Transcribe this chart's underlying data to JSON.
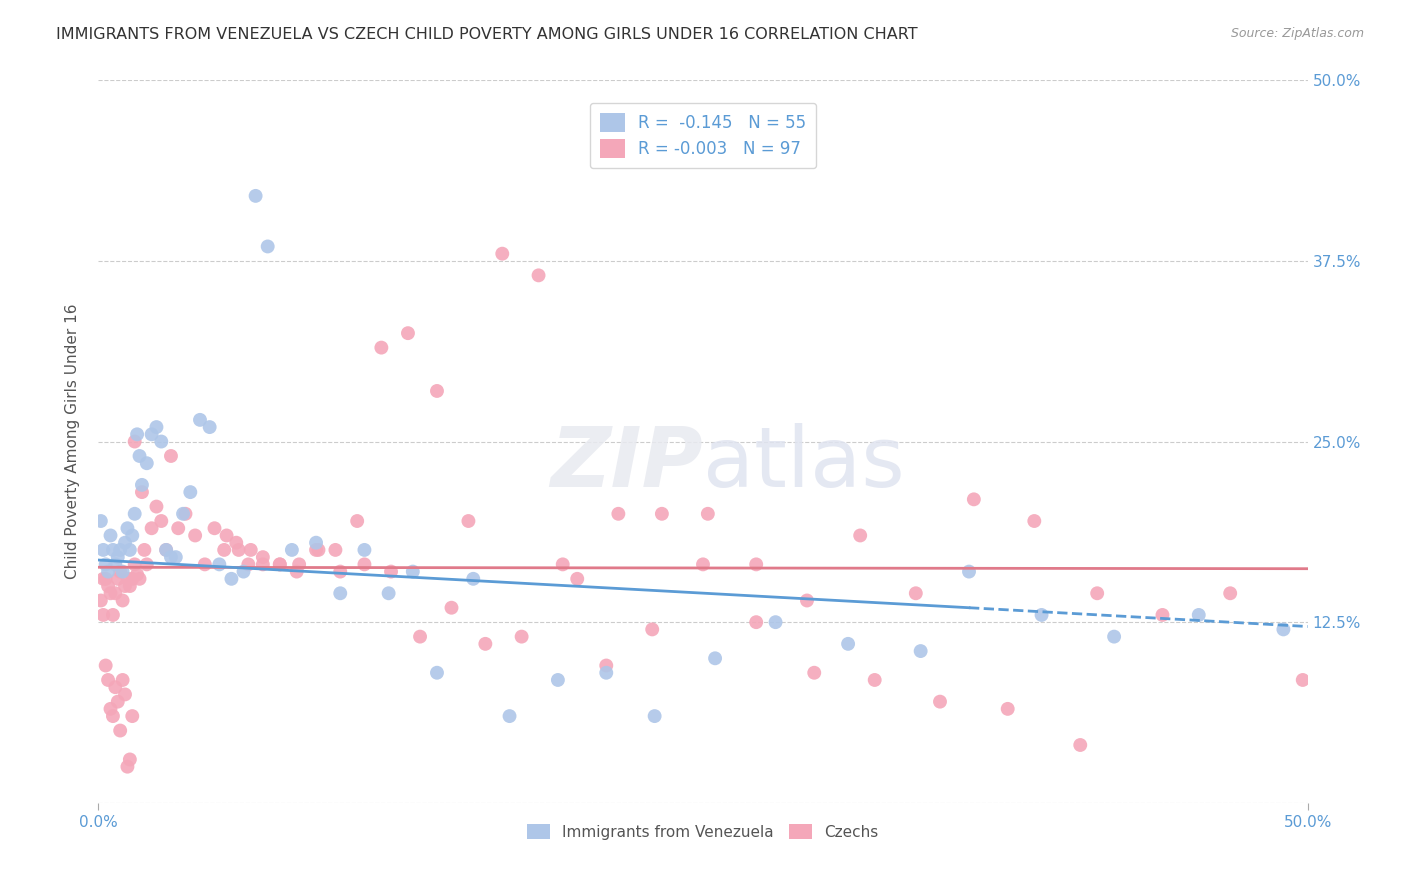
{
  "title": "IMMIGRANTS FROM VENEZUELA VS CZECH CHILD POVERTY AMONG GIRLS UNDER 16 CORRELATION CHART",
  "source": "Source: ZipAtlas.com",
  "ylabel": "Child Poverty Among Girls Under 16",
  "y_ticks": [
    0.0,
    0.125,
    0.25,
    0.375,
    0.5
  ],
  "y_tick_labels": [
    "",
    "12.5%",
    "25.0%",
    "37.5%",
    "50.0%"
  ],
  "x_range": [
    0.0,
    0.5
  ],
  "y_range": [
    0.0,
    0.5
  ],
  "legend_r1": "R =  -0.145",
  "legend_n1": "N = 55",
  "legend_r2": "R = -0.003",
  "legend_n2": "N = 97",
  "color_venezuela": "#aec6e8",
  "color_czech": "#f4a7b9",
  "color_line_venezuela": "#5b9bd5",
  "color_line_czech": "#e07a8a",
  "background": "#ffffff",
  "ven_line_x0": 0.0,
  "ven_line_y0": 0.168,
  "ven_line_x1": 0.36,
  "ven_line_y1": 0.135,
  "ven_line_dash_x0": 0.36,
  "ven_line_dash_y0": 0.135,
  "ven_line_dash_x1": 0.5,
  "ven_line_dash_y1": 0.122,
  "cze_line_x0": 0.0,
  "cze_line_y0": 0.163,
  "cze_line_x1": 0.5,
  "cze_line_y1": 0.162,
  "venezuela_x": [
    0.001,
    0.002,
    0.003,
    0.004,
    0.005,
    0.006,
    0.007,
    0.008,
    0.009,
    0.01,
    0.011,
    0.012,
    0.013,
    0.014,
    0.015,
    0.016,
    0.017,
    0.018,
    0.02,
    0.022,
    0.024,
    0.026,
    0.028,
    0.03,
    0.032,
    0.035,
    0.038,
    0.042,
    0.046,
    0.05,
    0.055,
    0.06,
    0.065,
    0.07,
    0.08,
    0.09,
    0.1,
    0.11,
    0.12,
    0.13,
    0.14,
    0.155,
    0.17,
    0.19,
    0.21,
    0.23,
    0.255,
    0.28,
    0.31,
    0.34,
    0.36,
    0.39,
    0.42,
    0.455,
    0.49
  ],
  "venezuela_y": [
    0.195,
    0.175,
    0.165,
    0.16,
    0.185,
    0.175,
    0.165,
    0.17,
    0.175,
    0.16,
    0.18,
    0.19,
    0.175,
    0.185,
    0.2,
    0.255,
    0.24,
    0.22,
    0.235,
    0.255,
    0.26,
    0.25,
    0.175,
    0.17,
    0.17,
    0.2,
    0.215,
    0.265,
    0.26,
    0.165,
    0.155,
    0.16,
    0.42,
    0.385,
    0.175,
    0.18,
    0.145,
    0.175,
    0.145,
    0.16,
    0.09,
    0.155,
    0.06,
    0.085,
    0.09,
    0.06,
    0.1,
    0.125,
    0.11,
    0.105,
    0.16,
    0.13,
    0.115,
    0.13,
    0.12
  ],
  "czech_x": [
    0.001,
    0.002,
    0.003,
    0.004,
    0.005,
    0.006,
    0.007,
    0.008,
    0.009,
    0.01,
    0.011,
    0.012,
    0.013,
    0.014,
    0.015,
    0.016,
    0.017,
    0.018,
    0.019,
    0.02,
    0.022,
    0.024,
    0.026,
    0.028,
    0.03,
    0.033,
    0.036,
    0.04,
    0.044,
    0.048,
    0.053,
    0.058,
    0.063,
    0.068,
    0.075,
    0.082,
    0.09,
    0.098,
    0.107,
    0.117,
    0.128,
    0.14,
    0.153,
    0.167,
    0.182,
    0.198,
    0.215,
    0.233,
    0.252,
    0.272,
    0.293,
    0.315,
    0.338,
    0.362,
    0.387,
    0.413,
    0.44,
    0.468,
    0.498,
    0.052,
    0.057,
    0.062,
    0.068,
    0.075,
    0.083,
    0.091,
    0.1,
    0.11,
    0.121,
    0.133,
    0.146,
    0.16,
    0.175,
    0.192,
    0.21,
    0.229,
    0.25,
    0.272,
    0.296,
    0.321,
    0.348,
    0.376,
    0.406,
    0.002,
    0.003,
    0.004,
    0.005,
    0.006,
    0.007,
    0.008,
    0.009,
    0.01,
    0.011,
    0.012,
    0.013,
    0.014,
    0.015
  ],
  "czech_y": [
    0.14,
    0.13,
    0.155,
    0.15,
    0.145,
    0.13,
    0.145,
    0.155,
    0.16,
    0.14,
    0.15,
    0.155,
    0.15,
    0.155,
    0.165,
    0.158,
    0.155,
    0.215,
    0.175,
    0.165,
    0.19,
    0.205,
    0.195,
    0.175,
    0.24,
    0.19,
    0.2,
    0.185,
    0.165,
    0.19,
    0.185,
    0.175,
    0.175,
    0.17,
    0.165,
    0.16,
    0.175,
    0.175,
    0.195,
    0.315,
    0.325,
    0.285,
    0.195,
    0.38,
    0.365,
    0.155,
    0.2,
    0.2,
    0.2,
    0.165,
    0.14,
    0.185,
    0.145,
    0.21,
    0.195,
    0.145,
    0.13,
    0.145,
    0.085,
    0.175,
    0.18,
    0.165,
    0.165,
    0.165,
    0.165,
    0.175,
    0.16,
    0.165,
    0.16,
    0.115,
    0.135,
    0.11,
    0.115,
    0.165,
    0.095,
    0.12,
    0.165,
    0.125,
    0.09,
    0.085,
    0.07,
    0.065,
    0.04,
    0.155,
    0.095,
    0.085,
    0.065,
    0.06,
    0.08,
    0.07,
    0.05,
    0.085,
    0.075,
    0.025,
    0.03,
    0.06,
    0.25
  ]
}
